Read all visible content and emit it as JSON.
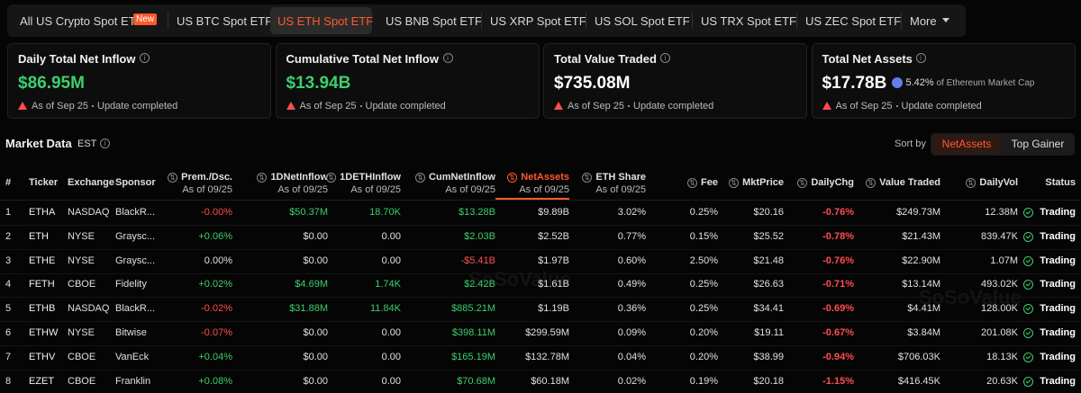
{
  "tabs": [
    {
      "label": "All US Crypto Spot ETF",
      "badge": "New"
    },
    {
      "label": "US BTC Spot ETF"
    },
    {
      "label": "US ETH Spot ETF"
    },
    {
      "label": "US BNB Spot ETF"
    },
    {
      "label": "US XRP Spot ETF"
    },
    {
      "label": "US SOL Spot ETF"
    },
    {
      "label": "US TRX Spot ETF"
    },
    {
      "label": "US ZEC Spot ETF"
    },
    {
      "label": "More"
    }
  ],
  "active_tab": 2,
  "cards": [
    {
      "label": "Daily Total Net Inflow",
      "value": "$86.95M",
      "date": "As of Sep 25",
      "status": "Update completed"
    },
    {
      "label": "Cumulative Total Net Inflow",
      "value": "$13.94B",
      "date": "As of Sep 25",
      "status": "Update completed"
    },
    {
      "label": "Total Value Traded",
      "value": "$735.08M",
      "date": "As of Sep 25",
      "status": "Update completed"
    },
    {
      "label": "Total Net Assets",
      "value": "$17.78B",
      "extra": "5.42%",
      "extra_note": "of Ethereum Market Cap",
      "date": "As of Sep 25",
      "status": "Update completed"
    }
  ],
  "section": {
    "title": "Market Data",
    "timezone": "EST",
    "sort_label": "Sort by",
    "sort_options": [
      "NetAssets",
      "Top Gainer"
    ]
  },
  "watermark": "SoSoValue",
  "table": {
    "headers": [
      {
        "label": "#"
      },
      {
        "label": "Ticker"
      },
      {
        "label": "Exchange"
      },
      {
        "label": "Sponsor"
      },
      {
        "label": "Prem./Dsc.",
        "sub": "As of 09/25"
      },
      {
        "label": "1DNetInflow",
        "sub": "As of 09/25"
      },
      {
        "label": "1DETHInflow",
        "sub": "As of 09/25"
      },
      {
        "label": "CumNetInflow",
        "sub": "As of 09/25"
      },
      {
        "label": "NetAssets",
        "sub": "As of 09/25"
      },
      {
        "label": "ETH Share",
        "sub": "As of 09/25"
      },
      {
        "label": "Fee"
      },
      {
        "label": "MktPrice"
      },
      {
        "label": "DailyChg"
      },
      {
        "label": "Value Traded"
      },
      {
        "label": "DailyVol"
      },
      {
        "label": "Status"
      }
    ],
    "rows": [
      [
        "1",
        "ETHA",
        "NASDAQ",
        "BlackR...",
        "-0.00%",
        "$50.37M",
        "18.70K",
        "$13.28B",
        "$9.89B",
        "3.02%",
        "0.25%",
        "$20.16",
        "-0.76%",
        "$249.73M",
        "12.38M",
        "Trading"
      ],
      [
        "2",
        "ETH",
        "NYSE",
        "Graysc...",
        "+0.06%",
        "$0.00",
        "0.00",
        "$2.03B",
        "$2.52B",
        "0.77%",
        "0.15%",
        "$25.52",
        "-0.78%",
        "$21.43M",
        "839.47K",
        "Trading"
      ],
      [
        "3",
        "ETHE",
        "NYSE",
        "Graysc...",
        "0.00%",
        "$0.00",
        "0.00",
        "-$5.41B",
        "$1.97B",
        "0.60%",
        "2.50%",
        "$21.48",
        "-0.76%",
        "$22.90M",
        "1.07M",
        "Trading"
      ],
      [
        "4",
        "FETH",
        "CBOE",
        "Fidelity",
        "+0.02%",
        "$4.69M",
        "1.74K",
        "$2.42B",
        "$1.61B",
        "0.49%",
        "0.25%",
        "$26.63",
        "-0.71%",
        "$13.14M",
        "493.02K",
        "Trading"
      ],
      [
        "5",
        "ETHB",
        "NASDAQ",
        "BlackR...",
        "-0.02%",
        "$31.88M",
        "11.84K",
        "$885.21M",
        "$1.19B",
        "0.36%",
        "0.25%",
        "$34.41",
        "-0.69%",
        "$4.41M",
        "128.00K",
        "Trading"
      ],
      [
        "6",
        "ETHW",
        "NYSE",
        "Bitwise",
        "-0.07%",
        "$0.00",
        "0.00",
        "$398.11M",
        "$299.59M",
        "0.09%",
        "0.20%",
        "$19.11",
        "-0.67%",
        "$3.84M",
        "201.08K",
        "Trading"
      ],
      [
        "7",
        "ETHV",
        "CBOE",
        "VanEck",
        "+0.04%",
        "$0.00",
        "0.00",
        "$165.19M",
        "$132.78M",
        "0.04%",
        "0.20%",
        "$38.99",
        "-0.94%",
        "$706.03K",
        "18.13K",
        "Trading"
      ],
      [
        "8",
        "EZET",
        "CBOE",
        "Franklin",
        "+0.08%",
        "$0.00",
        "0.00",
        "$70.68M",
        "$60.18M",
        "0.02%",
        "0.19%",
        "$20.18",
        "-1.15%",
        "$416.45K",
        "20.63K",
        "Trading"
      ]
    ]
  }
}
